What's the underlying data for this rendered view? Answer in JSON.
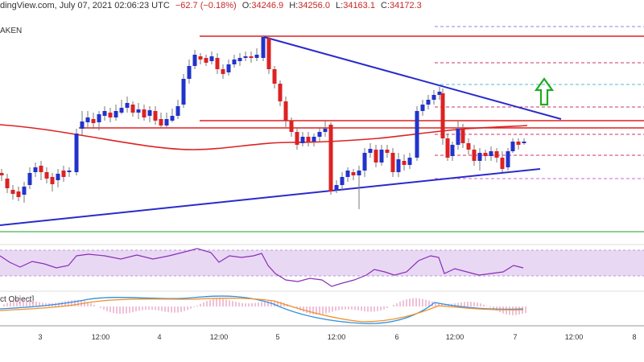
{
  "header": {
    "source": "dingView.com, July 07, 2021 02:06:23 UTC",
    "change": "−62.7 (−0.18%)",
    "o_label": "O:",
    "o_value": "34246.9",
    "h_label": "H:",
    "h_value": "34256.0",
    "l_label": "L:",
    "l_value": "34163.1",
    "c_label": "C:",
    "c_value": "34172.3"
  },
  "exchange_label": "AKEN",
  "osc_label": "ct Object]",
  "colors": {
    "bull": "#2233cc",
    "bear": "#dd2222",
    "ma": "#dd2222",
    "trend": "#2a2acc",
    "rsi_band": "#e8d8f4",
    "rsi_line": "#8a2fb5",
    "macd": "#2f8fe0",
    "signal": "#f0902a",
    "hist": "#e080b0",
    "arrow": "#22aa22"
  },
  "chart_data": {
    "type": "candlestick",
    "x_ticks": [
      "3",
      "12:00",
      "4",
      "12:00",
      "5",
      "12:00",
      "6",
      "12:00",
      "7",
      "12:00",
      "8"
    ],
    "price_ohlc": [],
    "indicators": [
      "moving-average",
      "rsi",
      "macd"
    ]
  }
}
